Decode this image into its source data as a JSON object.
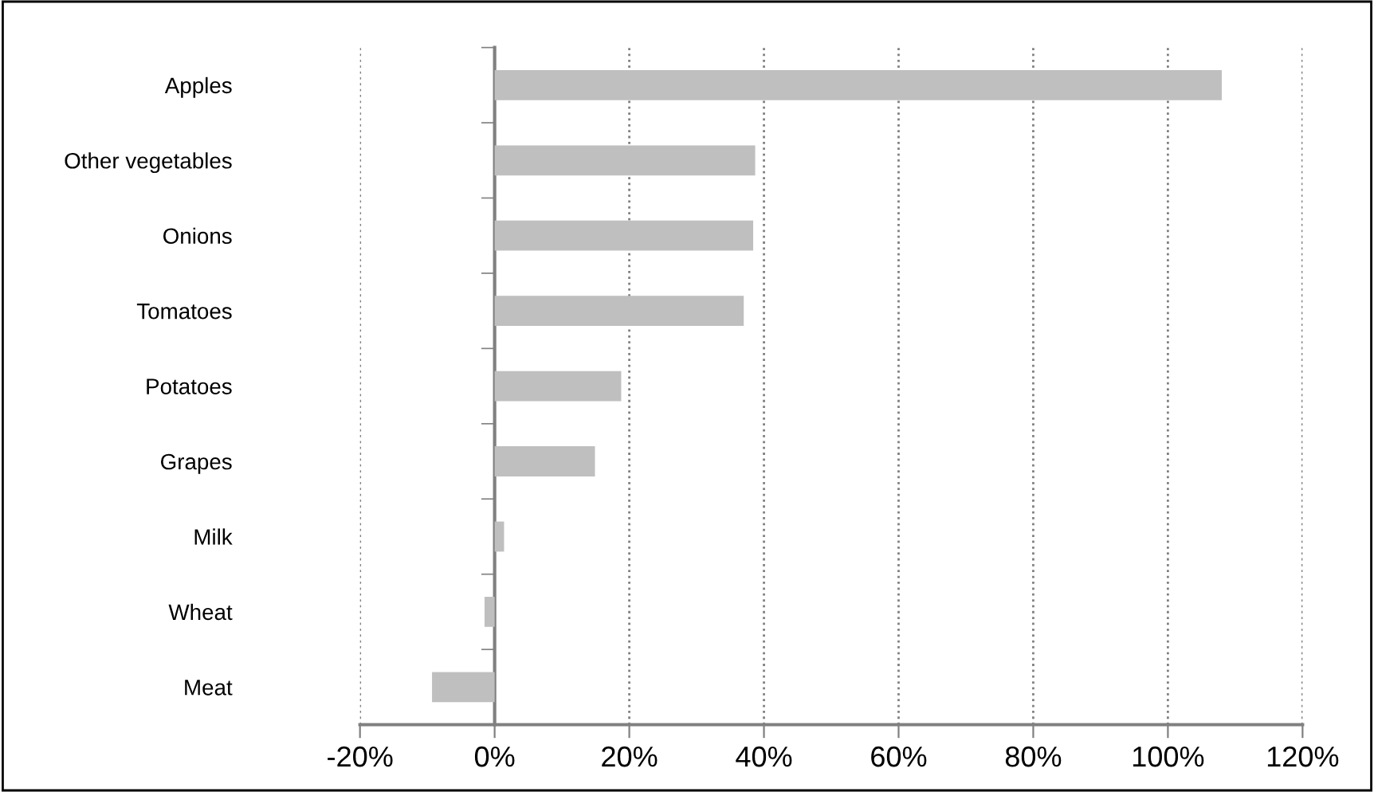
{
  "chart_data": {
    "type": "bar",
    "orientation": "horizontal",
    "categories": [
      "Apples",
      "Other vegetables",
      "Onions",
      "Tomatoes",
      "Potatoes",
      "Grapes",
      "Milk",
      "Wheat",
      "Meat"
    ],
    "values": [
      108,
      38.7,
      38.4,
      37,
      18.8,
      14.9,
      1.4,
      -1.5,
      -9.3
    ],
    "color": "#bfbfbf",
    "xlim": [
      -20,
      120
    ],
    "xticks": [
      {
        "value": -20,
        "label": "-20%"
      },
      {
        "value": 0,
        "label": "0%"
      },
      {
        "value": 20,
        "label": "20%"
      },
      {
        "value": 40,
        "label": "40%"
      },
      {
        "value": 60,
        "label": "60%"
      },
      {
        "value": 80,
        "label": "80%"
      },
      {
        "value": 100,
        "label": "100%"
      },
      {
        "value": 120,
        "label": "120%"
      }
    ],
    "grid": "x",
    "line_style": "dotted"
  }
}
